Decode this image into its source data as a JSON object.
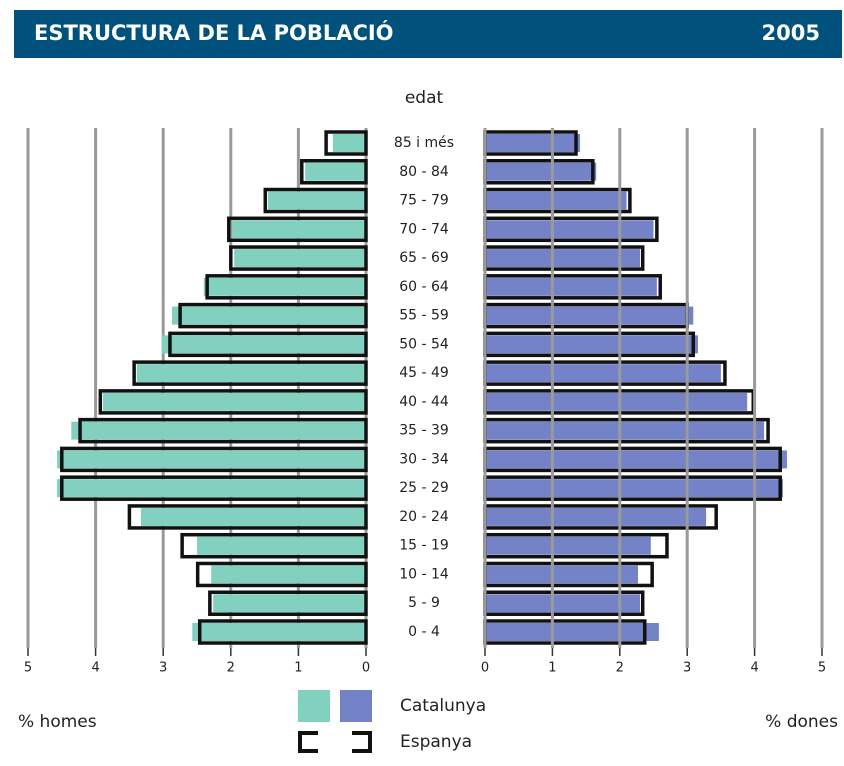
{
  "chart_data": {
    "type": "pyramid",
    "title": "ESTRUCTURA DE LA POBLACIÓ",
    "year": "2005",
    "category_label": "edat",
    "left_label": "% homes",
    "right_label": "% dones",
    "categories": [
      "85 i més",
      "80 - 84",
      "75 - 79",
      "70 - 74",
      "65 - 69",
      "60 - 64",
      "55 - 59",
      "50 - 54",
      "45 - 49",
      "40 - 44",
      "35 - 39",
      "30 - 34",
      "25 - 29",
      "20 - 24",
      "15 - 19",
      "10 - 14",
      "5 - 9",
      "0 - 4"
    ],
    "xlim": [
      0,
      5
    ],
    "xticks": [
      0,
      1,
      2,
      3,
      4,
      5
    ],
    "grid": true,
    "series": [
      {
        "name": "Catalunya",
        "style": "fill",
        "color": "#82d1c0",
        "color2": "#7483c7",
        "homes": [
          0.49,
          0.9,
          1.45,
          1.98,
          1.95,
          2.4,
          2.87,
          3.02,
          3.39,
          3.89,
          4.36,
          4.57,
          4.57,
          3.33,
          2.5,
          2.29,
          2.26,
          2.57
        ],
        "dones": [
          1.41,
          1.65,
          2.1,
          2.5,
          2.3,
          2.55,
          3.09,
          3.16,
          3.5,
          3.89,
          4.14,
          4.48,
          4.42,
          3.28,
          2.46,
          2.27,
          2.3,
          2.58
        ]
      },
      {
        "name": "Espanya",
        "style": "outline",
        "color": "#111111",
        "homes": [
          0.59,
          0.95,
          1.49,
          2.03,
          2.0,
          2.35,
          2.75,
          2.9,
          3.43,
          3.93,
          4.23,
          4.5,
          4.5,
          3.5,
          2.72,
          2.49,
          2.31,
          2.46
        ],
        "dones": [
          1.35,
          1.6,
          2.15,
          2.55,
          2.34,
          2.6,
          3.0,
          3.09,
          3.56,
          3.98,
          4.2,
          4.38,
          4.38,
          3.43,
          2.7,
          2.48,
          2.34,
          2.37
        ]
      }
    ]
  }
}
